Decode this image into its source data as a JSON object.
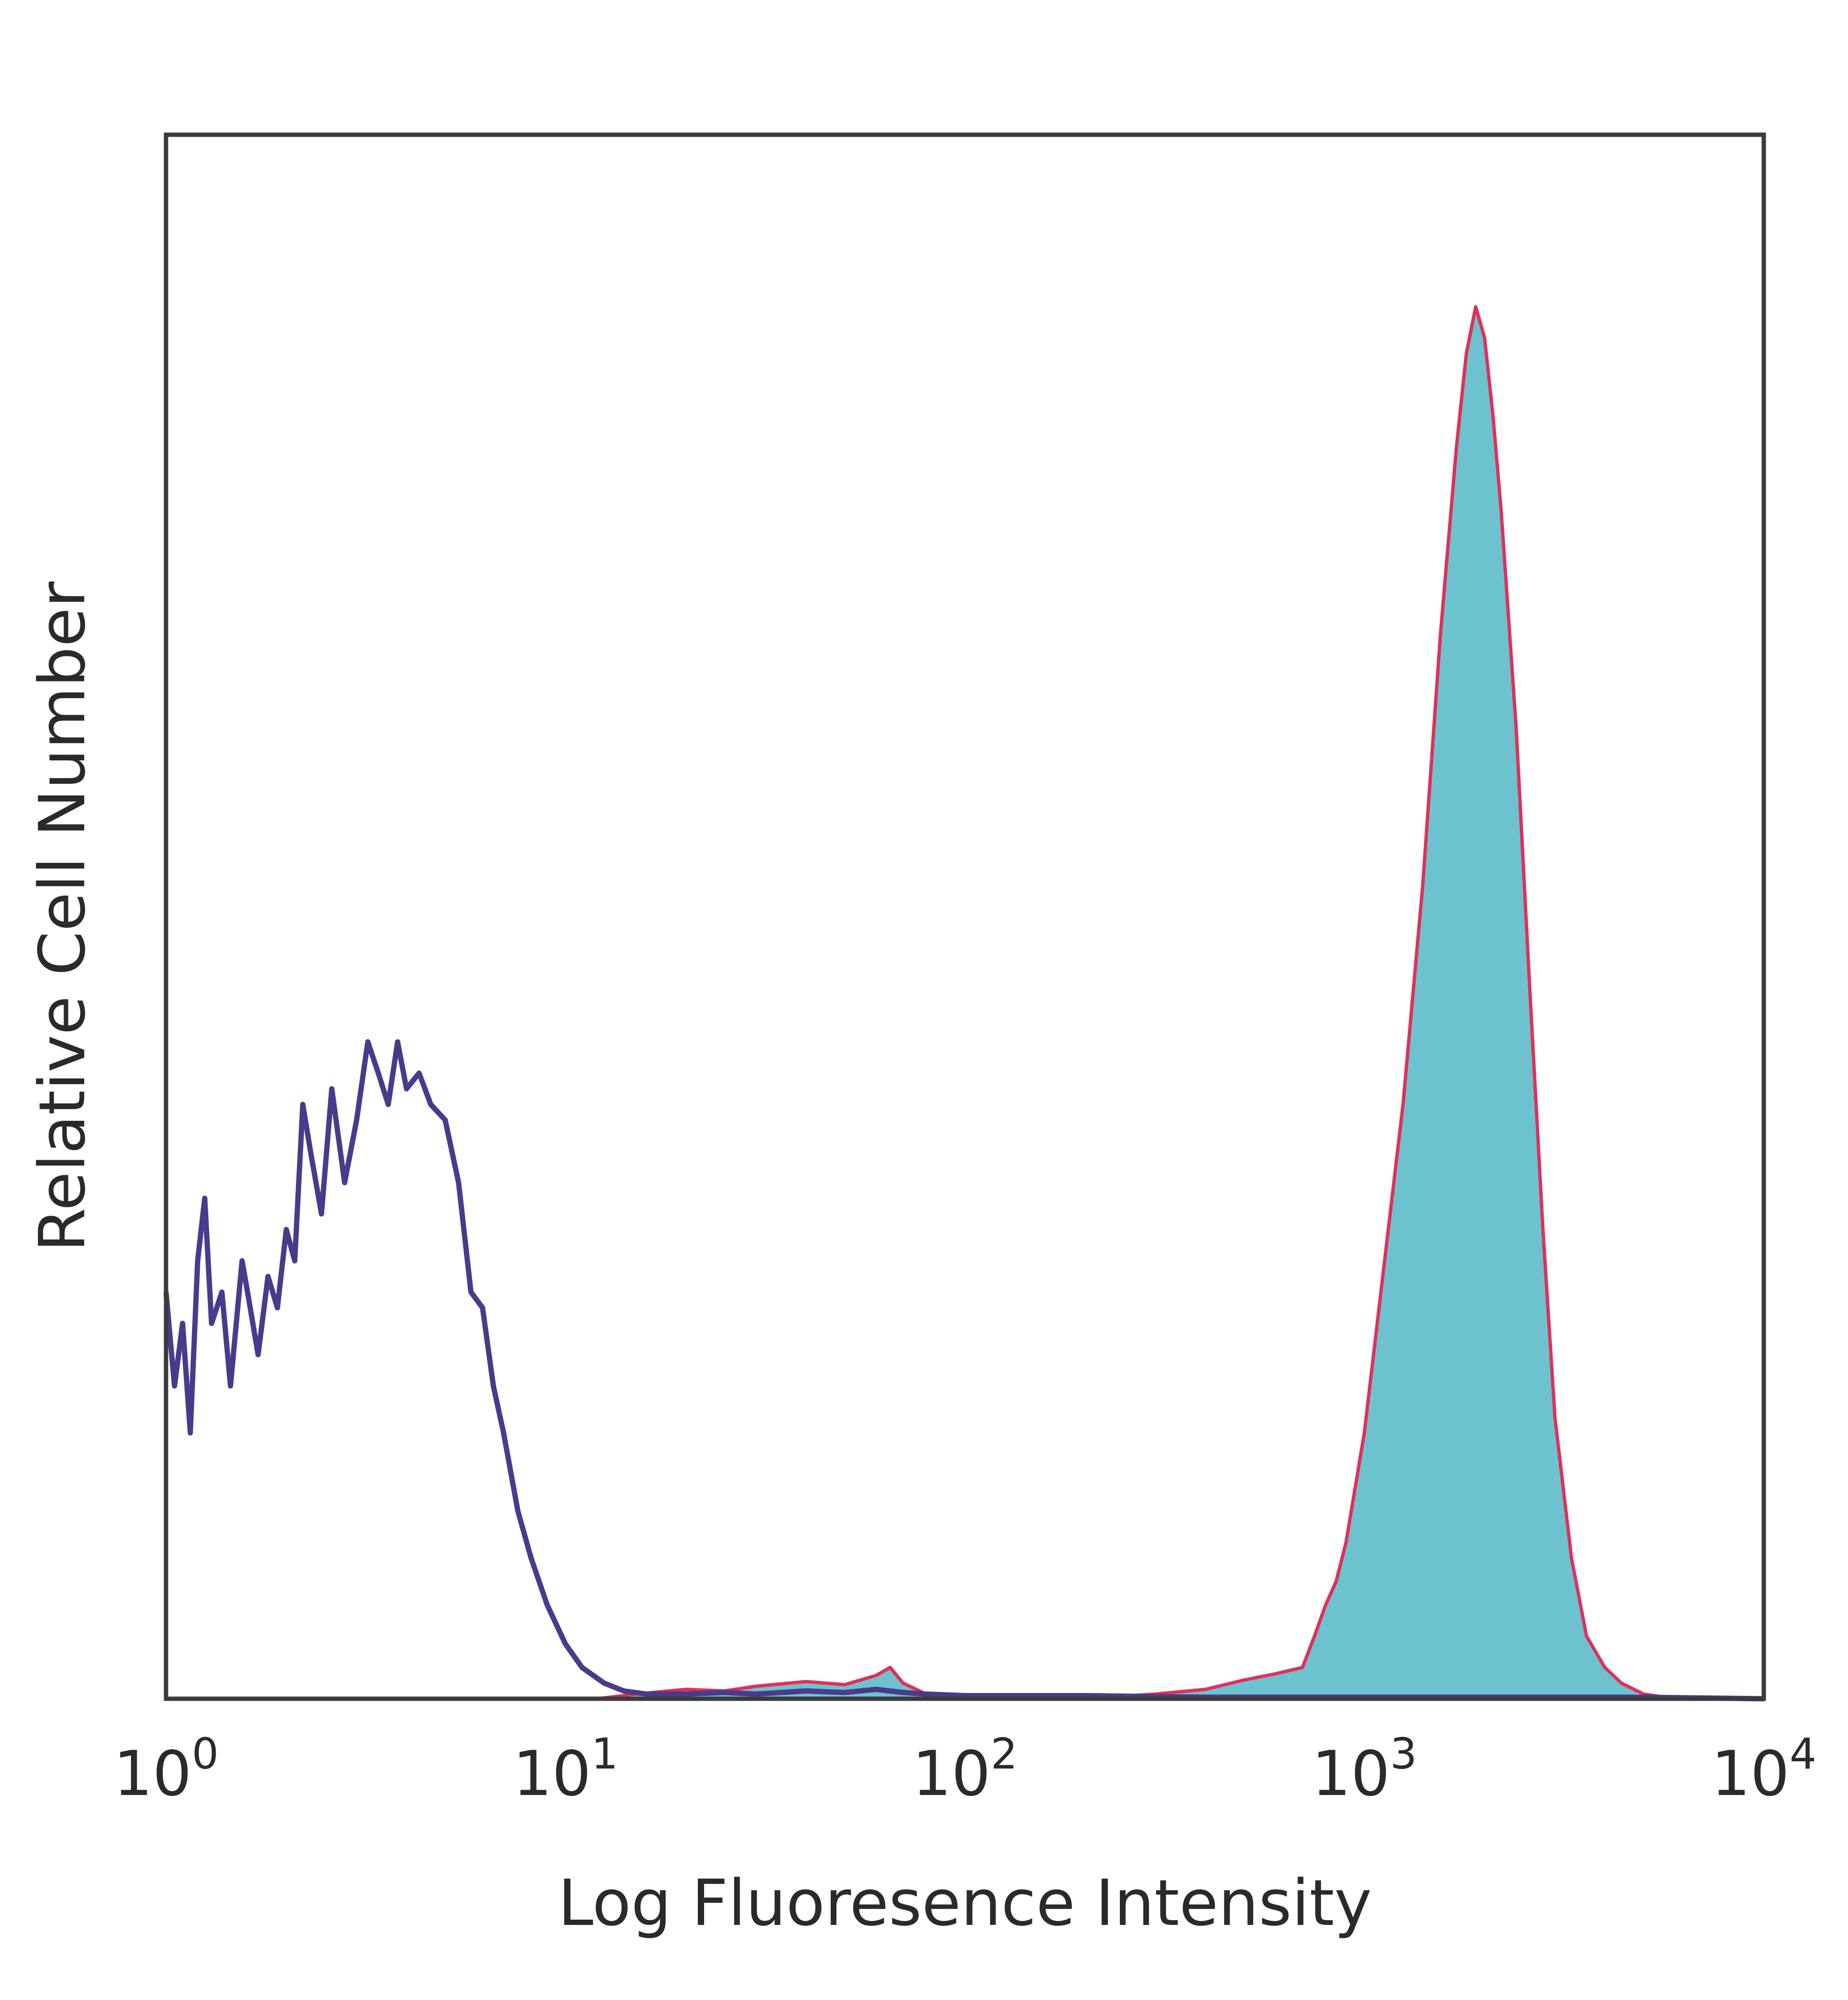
{
  "chart_data": {
    "type": "area",
    "xscale": "log",
    "xlim": [
      1,
      10000
    ],
    "ylim": [
      0,
      100
    ],
    "grid": false,
    "legend": "none",
    "xlabel": "Log Fluoresence Intensity",
    "ylabel": "Relative Cell Number",
    "xticks": [
      {
        "base": "10",
        "exp": "0"
      },
      {
        "base": "10",
        "exp": "1"
      },
      {
        "base": "10",
        "exp": "2"
      },
      {
        "base": "10",
        "exp": "3"
      },
      {
        "base": "10",
        "exp": "4"
      }
    ],
    "colors": {
      "frame": "#3a3a3a",
      "control_line": "#4a3a8c",
      "stained_fill": "#6cc3cf",
      "stained_outline": "#e0305a"
    },
    "series": [
      {
        "style": "line",
        "x": [
          1,
          1.05,
          1.1,
          1.15,
          1.2,
          1.25,
          1.3,
          1.38,
          1.45,
          1.55,
          1.6,
          1.7,
          1.8,
          1.9,
          2.0,
          2.1,
          2.2,
          2.3,
          2.45,
          2.6,
          2.8,
          3.0,
          3.2,
          3.4,
          3.6,
          3.8,
          4.0,
          4.3,
          4.6,
          5.0,
          5.4,
          5.8,
          6.2,
          6.6,
          7.0,
          7.6,
          8.2,
          9.0,
          10,
          11,
          12.5,
          14,
          16,
          20,
          25,
          30,
          40,
          50,
          60,
          70,
          80,
          100,
          200,
          400,
          1000,
          5000,
          10000
        ],
        "y": [
          26,
          20,
          24,
          17,
          28,
          32,
          24,
          26,
          20,
          28,
          26,
          22,
          27,
          25,
          30,
          28,
          38,
          35,
          31,
          39,
          33,
          37,
          42,
          40,
          38,
          42,
          39,
          40,
          38,
          37,
          33,
          26,
          25,
          20,
          17,
          12,
          9,
          6,
          3.5,
          2,
          1,
          0.5,
          0.3,
          0.3,
          0.4,
          0.3,
          0.5,
          0.4,
          0.6,
          0.4,
          0.3,
          0.2,
          0.2,
          0.1,
          0.1,
          0.1,
          0
        ]
      },
      {
        "style": "filled",
        "x": [
          1,
          2,
          5,
          10,
          12,
          15,
          20,
          25,
          30,
          40,
          50,
          60,
          65,
          70,
          80,
          100,
          200,
          300,
          400,
          500,
          600,
          700,
          750,
          800,
          850,
          900,
          1000,
          1100,
          1250,
          1400,
          1550,
          1700,
          1800,
          1900,
          2000,
          2100,
          2200,
          2400,
          2600,
          2800,
          3000,
          3300,
          3600,
          4000,
          4400,
          5000,
          6000,
          10000
        ],
        "y": [
          0,
          0,
          0,
          0,
          0,
          0.3,
          0.6,
          0.5,
          0.8,
          1.1,
          0.9,
          1.5,
          2.0,
          1.0,
          0.3,
          0.1,
          0,
          0.3,
          0.6,
          1.2,
          1.6,
          2.0,
          4.0,
          6.0,
          7.5,
          10,
          17,
          26,
          38,
          52,
          68,
          80,
          86,
          89,
          87,
          82,
          76,
          62,
          45,
          30,
          18,
          9,
          4,
          2,
          1,
          0.3,
          0,
          0
        ]
      }
    ]
  }
}
